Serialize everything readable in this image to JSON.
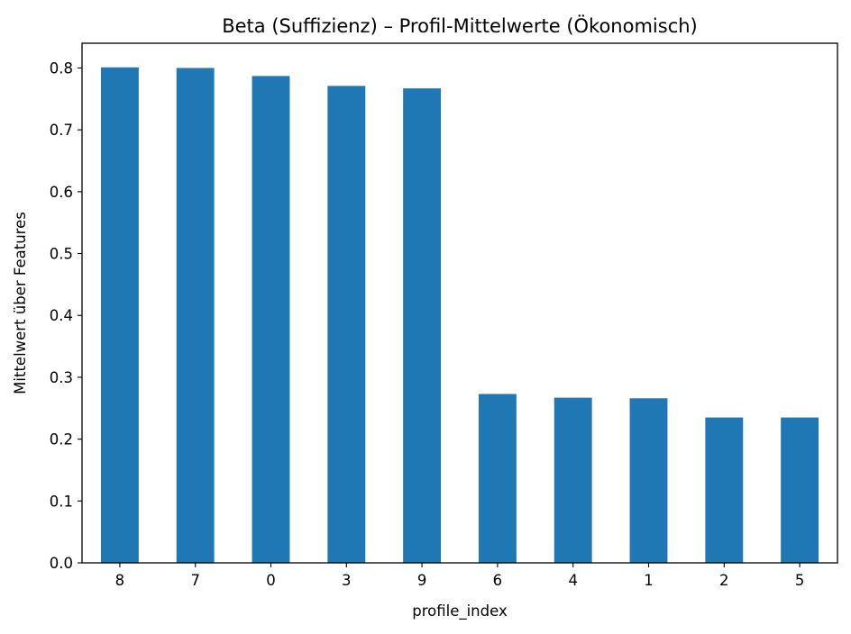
{
  "chart_data": {
    "type": "bar",
    "title": "Beta (Suffizienz) – Profil-Mittelwerte (Ökonomisch)",
    "xlabel": "profile_index",
    "ylabel": "Mittelwert über Features",
    "categories": [
      "8",
      "7",
      "0",
      "3",
      "9",
      "6",
      "4",
      "1",
      "2",
      "5"
    ],
    "values": [
      0.801,
      0.8,
      0.787,
      0.771,
      0.767,
      0.273,
      0.267,
      0.266,
      0.235,
      0.235
    ],
    "ylim": [
      0,
      0.84
    ],
    "yticks": [
      "0.0",
      "0.1",
      "0.2",
      "0.3",
      "0.4",
      "0.5",
      "0.6",
      "0.7",
      "0.8"
    ],
    "bar_color": "#1f77b4",
    "grid": false,
    "legend": false
  }
}
